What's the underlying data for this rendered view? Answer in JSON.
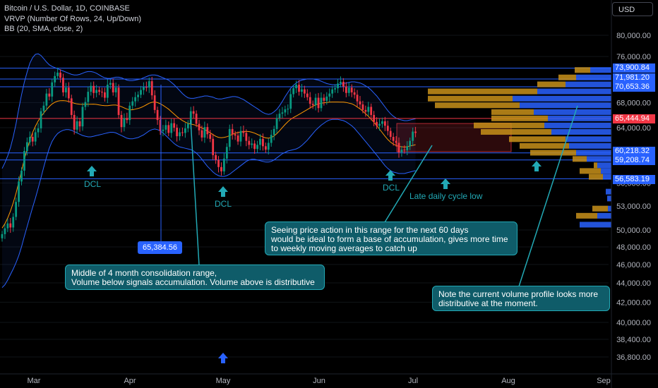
{
  "legend": {
    "line1": "Bitcoin / U.S. Dollar, 1D, COINBASE",
    "line2": "VRVP (Number Of Rows, 24, Up/Down)",
    "line3": "BB (20, SMA, close, 2)"
  },
  "currency_button": "USD",
  "colors": {
    "up": "#089981",
    "down": "#f23645",
    "bb_line": "#2962ff",
    "sma": "#ff9800",
    "hline_blue": "#2962ff",
    "hline_red": "#f23645",
    "note_bg": "#0f5c69",
    "note_border": "#22a9b5",
    "vp_up": "#2962ff",
    "vp_down": "#c8901a"
  },
  "chart_data": {
    "type": "candlestick",
    "x_axis_labels": [
      "Mar",
      "Apr",
      "May",
      "Jun",
      "Jul",
      "Aug",
      "Sep"
    ],
    "y_axis_ticks": [
      80000,
      76000,
      68000,
      64000,
      56000,
      53000,
      50000,
      48000,
      46000,
      44000,
      42000,
      40000,
      38400,
      36800
    ],
    "y_axis_tick_labels": [
      "80,000.00",
      "76,000.00",
      "68,000.00",
      "64,000.00",
      "56,000.00",
      "53,000.00",
      "50,000.00",
      "48,000.00",
      "46,000.00",
      "44,000.00",
      "42,000.00",
      "40,000.00",
      "38,400.00",
      "36,800.00"
    ],
    "scale": "log",
    "ylim": [
      36000,
      84000
    ],
    "price_lines": [
      {
        "label": "73,900.84",
        "value": 73900.84,
        "color": "#2962ff"
      },
      {
        "label": "71,981.20",
        "value": 71981.2,
        "color": "#2962ff"
      },
      {
        "label": "70,653.36",
        "value": 70653.36,
        "color": "#2962ff"
      },
      {
        "label": "65,444.94",
        "value": 65444.94,
        "color": "#f23645"
      },
      {
        "label": "60,218.32",
        "value": 60218.32,
        "color": "#2962ff"
      },
      {
        "label": "59,208.74",
        "value": 59208.74,
        "color": "#2962ff"
      },
      {
        "label": "56,583.19",
        "value": 56583.19,
        "color": "#2962ff"
      }
    ],
    "marker_price_label": "65,384.56",
    "closes": [
      49500,
      50200,
      50800,
      50300,
      51600,
      53500,
      56200,
      57700,
      60500,
      61800,
      62600,
      61900,
      63300,
      63900,
      66600,
      67500,
      69500,
      69000,
      71400,
      72500,
      73100,
      72200,
      69700,
      70500,
      68700,
      66000,
      63700,
      65000,
      64200,
      67300,
      68100,
      69800,
      70800,
      69600,
      70100,
      69800,
      69700,
      68800,
      71000,
      71300,
      69700,
      70500,
      66000,
      64100,
      65500,
      65200,
      67500,
      68200,
      68900,
      69300,
      70100,
      70600,
      70500,
      71600,
      69200,
      66800,
      65200,
      63500,
      63700,
      64400,
      63200,
      64700,
      64000,
      62700,
      63300,
      63200,
      63900,
      64600,
      66600,
      66200,
      64600,
      63600,
      62500,
      64100,
      63000,
      62300,
      59900,
      59200,
      58200,
      57600,
      59400,
      61100,
      63800,
      63000,
      62800,
      61900,
      63500,
      63200,
      62000,
      61400,
      61600,
      60800,
      61400,
      62300,
      61200,
      60700,
      61700,
      62900,
      63800,
      65500,
      66200,
      66400,
      66900,
      67000,
      69400,
      70400,
      71000,
      69800,
      70200,
      69500,
      68900,
      67800,
      67600,
      68800,
      67100,
      68800,
      68300,
      69000,
      69500,
      70200,
      70400,
      71200,
      71500,
      70700,
      69600,
      70500,
      69700,
      69300,
      68200,
      67700,
      66800,
      66500,
      67300,
      66000,
      64900,
      64300,
      64600,
      65000,
      64300,
      63500,
      62600,
      62000,
      61700,
      60300,
      60700,
      60600,
      61200,
      62000,
      63400,
      63200
    ],
    "bb_upper": [
      58000,
      58800,
      59800,
      61000,
      62600,
      64600,
      67000,
      69300,
      71400,
      73200,
      74800,
      75800,
      76400,
      76500,
      76200,
      75600,
      75000,
      74500,
      74200,
      74000,
      73800,
      73600,
      73400,
      73200,
      73000,
      72800,
      72700,
      72700,
      72800,
      73000,
      73200,
      73300,
      73300,
      73200,
      73000,
      72700,
      72400,
      72200,
      72100,
      72100,
      72200,
      72300,
      72300,
      72200,
      72000,
      71800,
      71700,
      71700,
      71800,
      71900,
      72000,
      72200,
      72400,
      72600,
      72700,
      72700,
      72600,
      72400,
      72200,
      72000,
      71800,
      71400,
      71000,
      70500,
      70000,
      69500,
      69100,
      68800,
      68700,
      68700,
      68800,
      68900,
      69000,
      69100,
      69100,
      69000,
      68900,
      68700,
      68600,
      68600,
      68700,
      68800,
      68900,
      69000,
      69000,
      68900,
      68700,
      68500,
      68200,
      67900,
      67600,
      67300,
      67000,
      66700,
      66400,
      66200,
      66100,
      66200,
      66500,
      66900,
      67500,
      68200,
      69000,
      69700,
      70400,
      70900,
      71300,
      71600,
      71800,
      71900,
      72000,
      72000,
      72000,
      71900,
      71800,
      71600,
      71400,
      71200,
      71100,
      71000,
      71000,
      71000,
      71100,
      71200,
      71300,
      71400,
      71500,
      71500,
      71400,
      71300,
      71100,
      70800,
      70500,
      70100,
      69600,
      69100,
      68500,
      67900,
      67300,
      66700,
      66200,
      65800,
      65500,
      65300,
      65200,
      65100,
      65100,
      65200,
      65300,
      65400
    ],
    "bb_lower": [
      43500,
      43800,
      44300,
      44900,
      45500,
      46200,
      47000,
      48000,
      49200,
      50400,
      51600,
      52800,
      54000,
      55300,
      56700,
      58200,
      59600,
      60900,
      61900,
      62600,
      63100,
      63400,
      63600,
      63700,
      63700,
      63600,
      63400,
      63200,
      63000,
      62800,
      62700,
      62600,
      62600,
      62700,
      62800,
      62900,
      63000,
      63100,
      63200,
      63300,
      63300,
      63200,
      63000,
      62800,
      62600,
      62400,
      62300,
      62300,
      62400,
      62500,
      62700,
      62900,
      63200,
      63500,
      63700,
      63800,
      63700,
      63500,
      63200,
      62800,
      62400,
      62000,
      61600,
      61300,
      61100,
      61000,
      60900,
      60800,
      60700,
      60500,
      60200,
      59800,
      59300,
      58800,
      58300,
      57900,
      57500,
      57200,
      57000,
      56900,
      56900,
      57000,
      57200,
      57500,
      57800,
      58100,
      58400,
      58700,
      59000,
      59200,
      59300,
      59300,
      59200,
      59100,
      59000,
      58900,
      58900,
      59000,
      59200,
      59500,
      59800,
      60100,
      60300,
      60500,
      60600,
      60700,
      60800,
      61000,
      61300,
      61700,
      62100,
      62600,
      63100,
      63600,
      64000,
      64400,
      64700,
      65000,
      65200,
      65300,
      65300,
      65300,
      65200,
      65100,
      64900,
      64600,
      64300,
      63900,
      63400,
      62900,
      62400,
      61900,
      61400,
      60900,
      60400,
      59900,
      59400,
      58900,
      58400,
      58000,
      57700,
      57500,
      57400,
      57300,
      57300,
      57300,
      57400,
      57500,
      57600,
      57700
    ],
    "volume_profile": [
      {
        "price": 73500,
        "up": 30,
        "down": 22
      },
      {
        "price": 72200,
        "up": 50,
        "down": 25
      },
      {
        "price": 71000,
        "up": 65,
        "down": 40
      },
      {
        "price": 69800,
        "up": 105,
        "down": 155
      },
      {
        "price": 68600,
        "up": 140,
        "down": 120
      },
      {
        "price": 67500,
        "up": 130,
        "down": 120
      },
      {
        "price": 66400,
        "up": 110,
        "down": 60
      },
      {
        "price": 65400,
        "up": 90,
        "down": 80
      },
      {
        "price": 64300,
        "up": 95,
        "down": 100
      },
      {
        "price": 63300,
        "up": 85,
        "down": 100
      },
      {
        "price": 62200,
        "up": 65,
        "down": 80
      },
      {
        "price": 61200,
        "up": 60,
        "down": 70
      },
      {
        "price": 60200,
        "up": 50,
        "down": 65
      },
      {
        "price": 59300,
        "up": 35,
        "down": 20
      },
      {
        "price": 58400,
        "up": 20,
        "down": 5
      },
      {
        "price": 57600,
        "up": 15,
        "down": 30
      },
      {
        "price": 56800,
        "up": 12,
        "down": 20
      },
      {
        "price": 54800,
        "up": 8,
        "down": 0
      },
      {
        "price": 53900,
        "up": 6,
        "down": 0
      },
      {
        "price": 52600,
        "up": 5,
        "down": 22
      },
      {
        "price": 51700,
        "up": 20,
        "down": 30
      },
      {
        "price": 50600,
        "up": 45,
        "down": 0
      }
    ],
    "cycle_labels": [
      {
        "text": "DCL",
        "day": 25
      },
      {
        "text": "DCL",
        "day": 65
      },
      {
        "text": "DCL",
        "day": 132
      },
      {
        "text": "Late daily cycle low",
        "day": 155
      }
    ],
    "annotations": [
      "Middle of 4 month consolidation range,\nVolume below signals accumulation. Volume above is distributive",
      "Seeing price action in this range for the next 60 days\nwould be ideal to form a base of accumulation, gives more time\nto weekly moving averages to catch up",
      "Note the current volume profile looks more\ndistributive at the moment."
    ]
  }
}
